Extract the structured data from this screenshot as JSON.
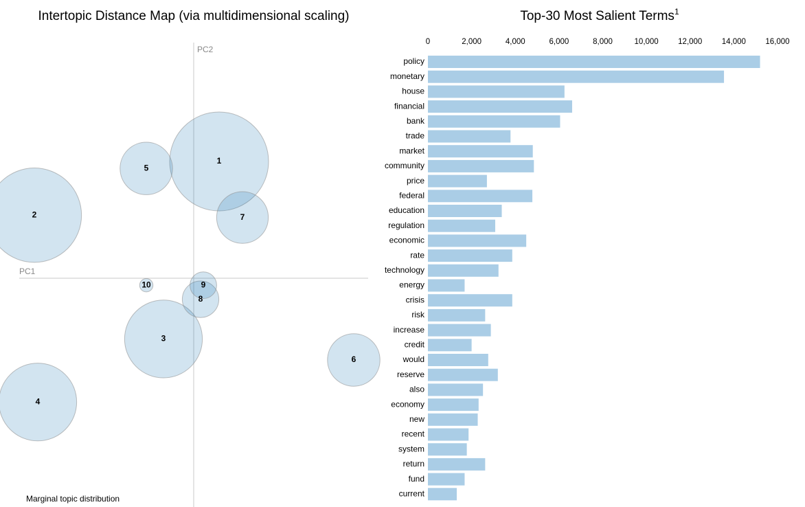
{
  "chart_data": [
    {
      "type": "scatter",
      "title": "Intertopic Distance Map (via multidimensional scaling)",
      "xlabel": "PC1",
      "ylabel": "PC2",
      "grid": false,
      "footer": "Marginal topic distribution",
      "topics": [
        {
          "label": "1",
          "x": 0.37,
          "y": 0.5,
          "size": 0.11
        },
        {
          "label": "2",
          "x": -2.32,
          "y": 0.27,
          "size": 0.1
        },
        {
          "label": "3",
          "x": -0.44,
          "y": -0.26,
          "size": 0.068
        },
        {
          "label": "4",
          "x": -2.27,
          "y": -0.53,
          "size": 0.068
        },
        {
          "label": "5",
          "x": -0.69,
          "y": 0.47,
          "size": 0.031
        },
        {
          "label": "6",
          "x": 2.33,
          "y": -0.35,
          "size": 0.031
        },
        {
          "label": "7",
          "x": 0.71,
          "y": 0.26,
          "size": 0.03
        },
        {
          "label": "8",
          "x": 0.1,
          "y": -0.09,
          "size": 0.015
        },
        {
          "label": "9",
          "x": 0.14,
          "y": -0.03,
          "size": 0.008
        },
        {
          "label": "10",
          "x": -0.69,
          "y": -0.03,
          "size": 0.002
        }
      ]
    },
    {
      "type": "bar",
      "orientation": "horizontal",
      "title": "Top-30 Most Salient Terms",
      "title_superscript": "1",
      "xlim": [
        0,
        16000
      ],
      "xticks": [
        "0",
        "2,000",
        "4,000",
        "6,000",
        "8,000",
        "10,000",
        "12,000",
        "14,000",
        "16,000"
      ],
      "xtick_values": [
        0,
        2000,
        4000,
        6000,
        8000,
        10000,
        12000,
        14000,
        16000
      ],
      "grid": false,
      "categories": [
        "policy",
        "monetary",
        "house",
        "financial",
        "bank",
        "trade",
        "market",
        "community",
        "price",
        "federal",
        "education",
        "regulation",
        "economic",
        "rate",
        "technology",
        "energy",
        "crisis",
        "risk",
        "increase",
        "credit",
        "would",
        "reserve",
        "also",
        "economy",
        "new",
        "recent",
        "system",
        "return",
        "fund",
        "current"
      ],
      "values": [
        15200,
        13550,
        6250,
        6600,
        6050,
        3780,
        4800,
        4850,
        2700,
        4780,
        3380,
        3080,
        4500,
        3860,
        3230,
        1680,
        3860,
        2620,
        2880,
        2000,
        2760,
        3200,
        2520,
        2320,
        2280,
        1860,
        1780,
        2620,
        1680,
        1320
      ],
      "color": "#aacde6"
    }
  ]
}
